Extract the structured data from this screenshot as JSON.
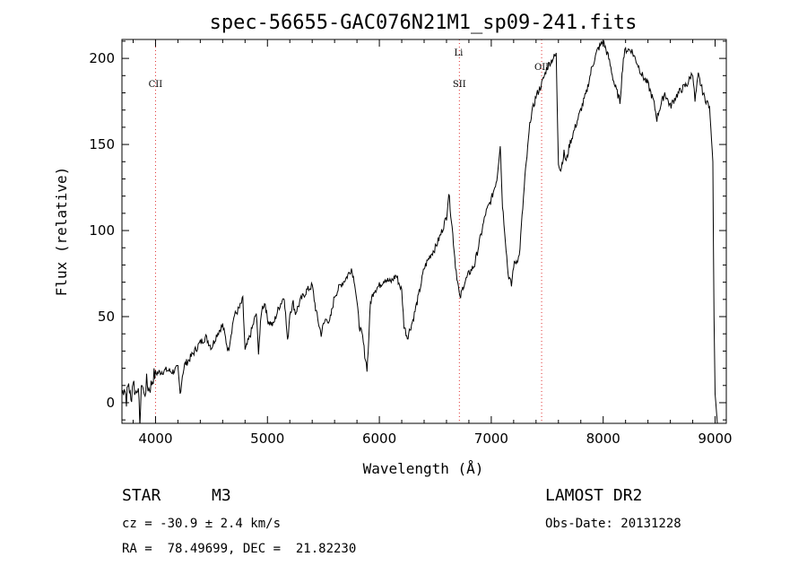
{
  "chart_data": {
    "type": "line",
    "title": "spec-56655-GAC076N21M1_sp09-241.fits",
    "xlabel": "Wavelength (Å)",
    "ylabel": "Flux (relative)",
    "xlim": [
      3700,
      9100
    ],
    "ylim": [
      -12,
      211
    ],
    "xticks": [
      4000,
      5000,
      6000,
      7000,
      8000,
      9000
    ],
    "yticks": [
      0,
      50,
      100,
      150,
      200
    ],
    "line_markers": [
      {
        "label": "CII",
        "wavelength": 4000
      },
      {
        "label": "SII",
        "wavelength": 6715
      },
      {
        "label": "Li",
        "wavelength": 6708
      },
      {
        "label": "OII",
        "wavelength": 7450
      }
    ],
    "series": [
      {
        "name": "flux",
        "x": [
          3700,
          3720,
          3740,
          3760,
          3780,
          3800,
          3820,
          3840,
          3860,
          3880,
          3900,
          3920,
          3940,
          3960,
          3980,
          4000,
          4050,
          4100,
          4150,
          4200,
          4220,
          4240,
          4260,
          4300,
          4350,
          4400,
          4450,
          4500,
          4550,
          4600,
          4650,
          4700,
          4750,
          4780,
          4800,
          4850,
          4900,
          4920,
          4950,
          4980,
          5000,
          5050,
          5100,
          5150,
          5180,
          5200,
          5230,
          5250,
          5300,
          5350,
          5400,
          5430,
          5450,
          5480,
          5500,
          5530,
          5550,
          5580,
          5600,
          5650,
          5700,
          5750,
          5780,
          5800,
          5820,
          5850,
          5870,
          5890,
          5900,
          5920,
          5950,
          6000,
          6050,
          6100,
          6150,
          6200,
          6220,
          6250,
          6300,
          6350,
          6400,
          6450,
          6500,
          6550,
          6600,
          6620,
          6650,
          6680,
          6700,
          6720,
          6750,
          6800,
          6850,
          6900,
          6950,
          7000,
          7050,
          7080,
          7100,
          7120,
          7150,
          7180,
          7200,
          7250,
          7300,
          7350,
          7400,
          7450,
          7500,
          7550,
          7580,
          7600,
          7620,
          7650,
          7670,
          7700,
          7750,
          7800,
          7850,
          7900,
          7950,
          8000,
          8050,
          8100,
          8150,
          8180,
          8200,
          8250,
          8300,
          8350,
          8400,
          8450,
          8480,
          8500,
          8550,
          8600,
          8650,
          8700,
          8750,
          8800,
          8820,
          8850,
          8900,
          8950,
          8980,
          8990,
          9000,
          9020
        ],
        "y": [
          5,
          10,
          2,
          12,
          0,
          14,
          5,
          11,
          -10,
          13,
          3,
          12,
          8,
          10,
          15,
          17,
          18,
          19,
          18,
          20,
          5,
          16,
          22,
          25,
          30,
          35,
          38,
          32,
          40,
          45,
          30,
          50,
          55,
          60,
          30,
          40,
          52,
          30,
          55,
          58,
          48,
          45,
          55,
          62,
          35,
          52,
          58,
          52,
          60,
          65,
          68,
          55,
          48,
          40,
          45,
          50,
          45,
          55,
          62,
          68,
          72,
          78,
          70,
          58,
          45,
          38,
          28,
          20,
          30,
          58,
          65,
          68,
          72,
          70,
          74,
          65,
          45,
          38,
          48,
          62,
          78,
          85,
          90,
          98,
          108,
          122,
          102,
          80,
          70,
          60,
          68,
          75,
          80,
          95,
          110,
          118,
          130,
          150,
          115,
          100,
          75,
          68,
          80,
          85,
          130,
          165,
          178,
          185,
          195,
          200,
          202,
          140,
          135,
          145,
          140,
          150,
          160,
          170,
          180,
          195,
          205,
          210,
          200,
          185,
          175,
          200,
          205,
          205,
          198,
          190,
          185,
          175,
          165,
          170,
          180,
          172,
          178,
          182,
          185,
          192,
          175,
          190,
          178,
          172,
          140,
          50,
          5,
          -12
        ]
      }
    ]
  },
  "info": {
    "object_type": "STAR",
    "subclass": "M3",
    "survey": "LAMOST DR2",
    "redshift": "cz = -30.9 ± 2.4 km/s",
    "obs_date": "Obs-Date: 20131228",
    "coords": "RA =  78.49699, DEC =  21.82230"
  }
}
